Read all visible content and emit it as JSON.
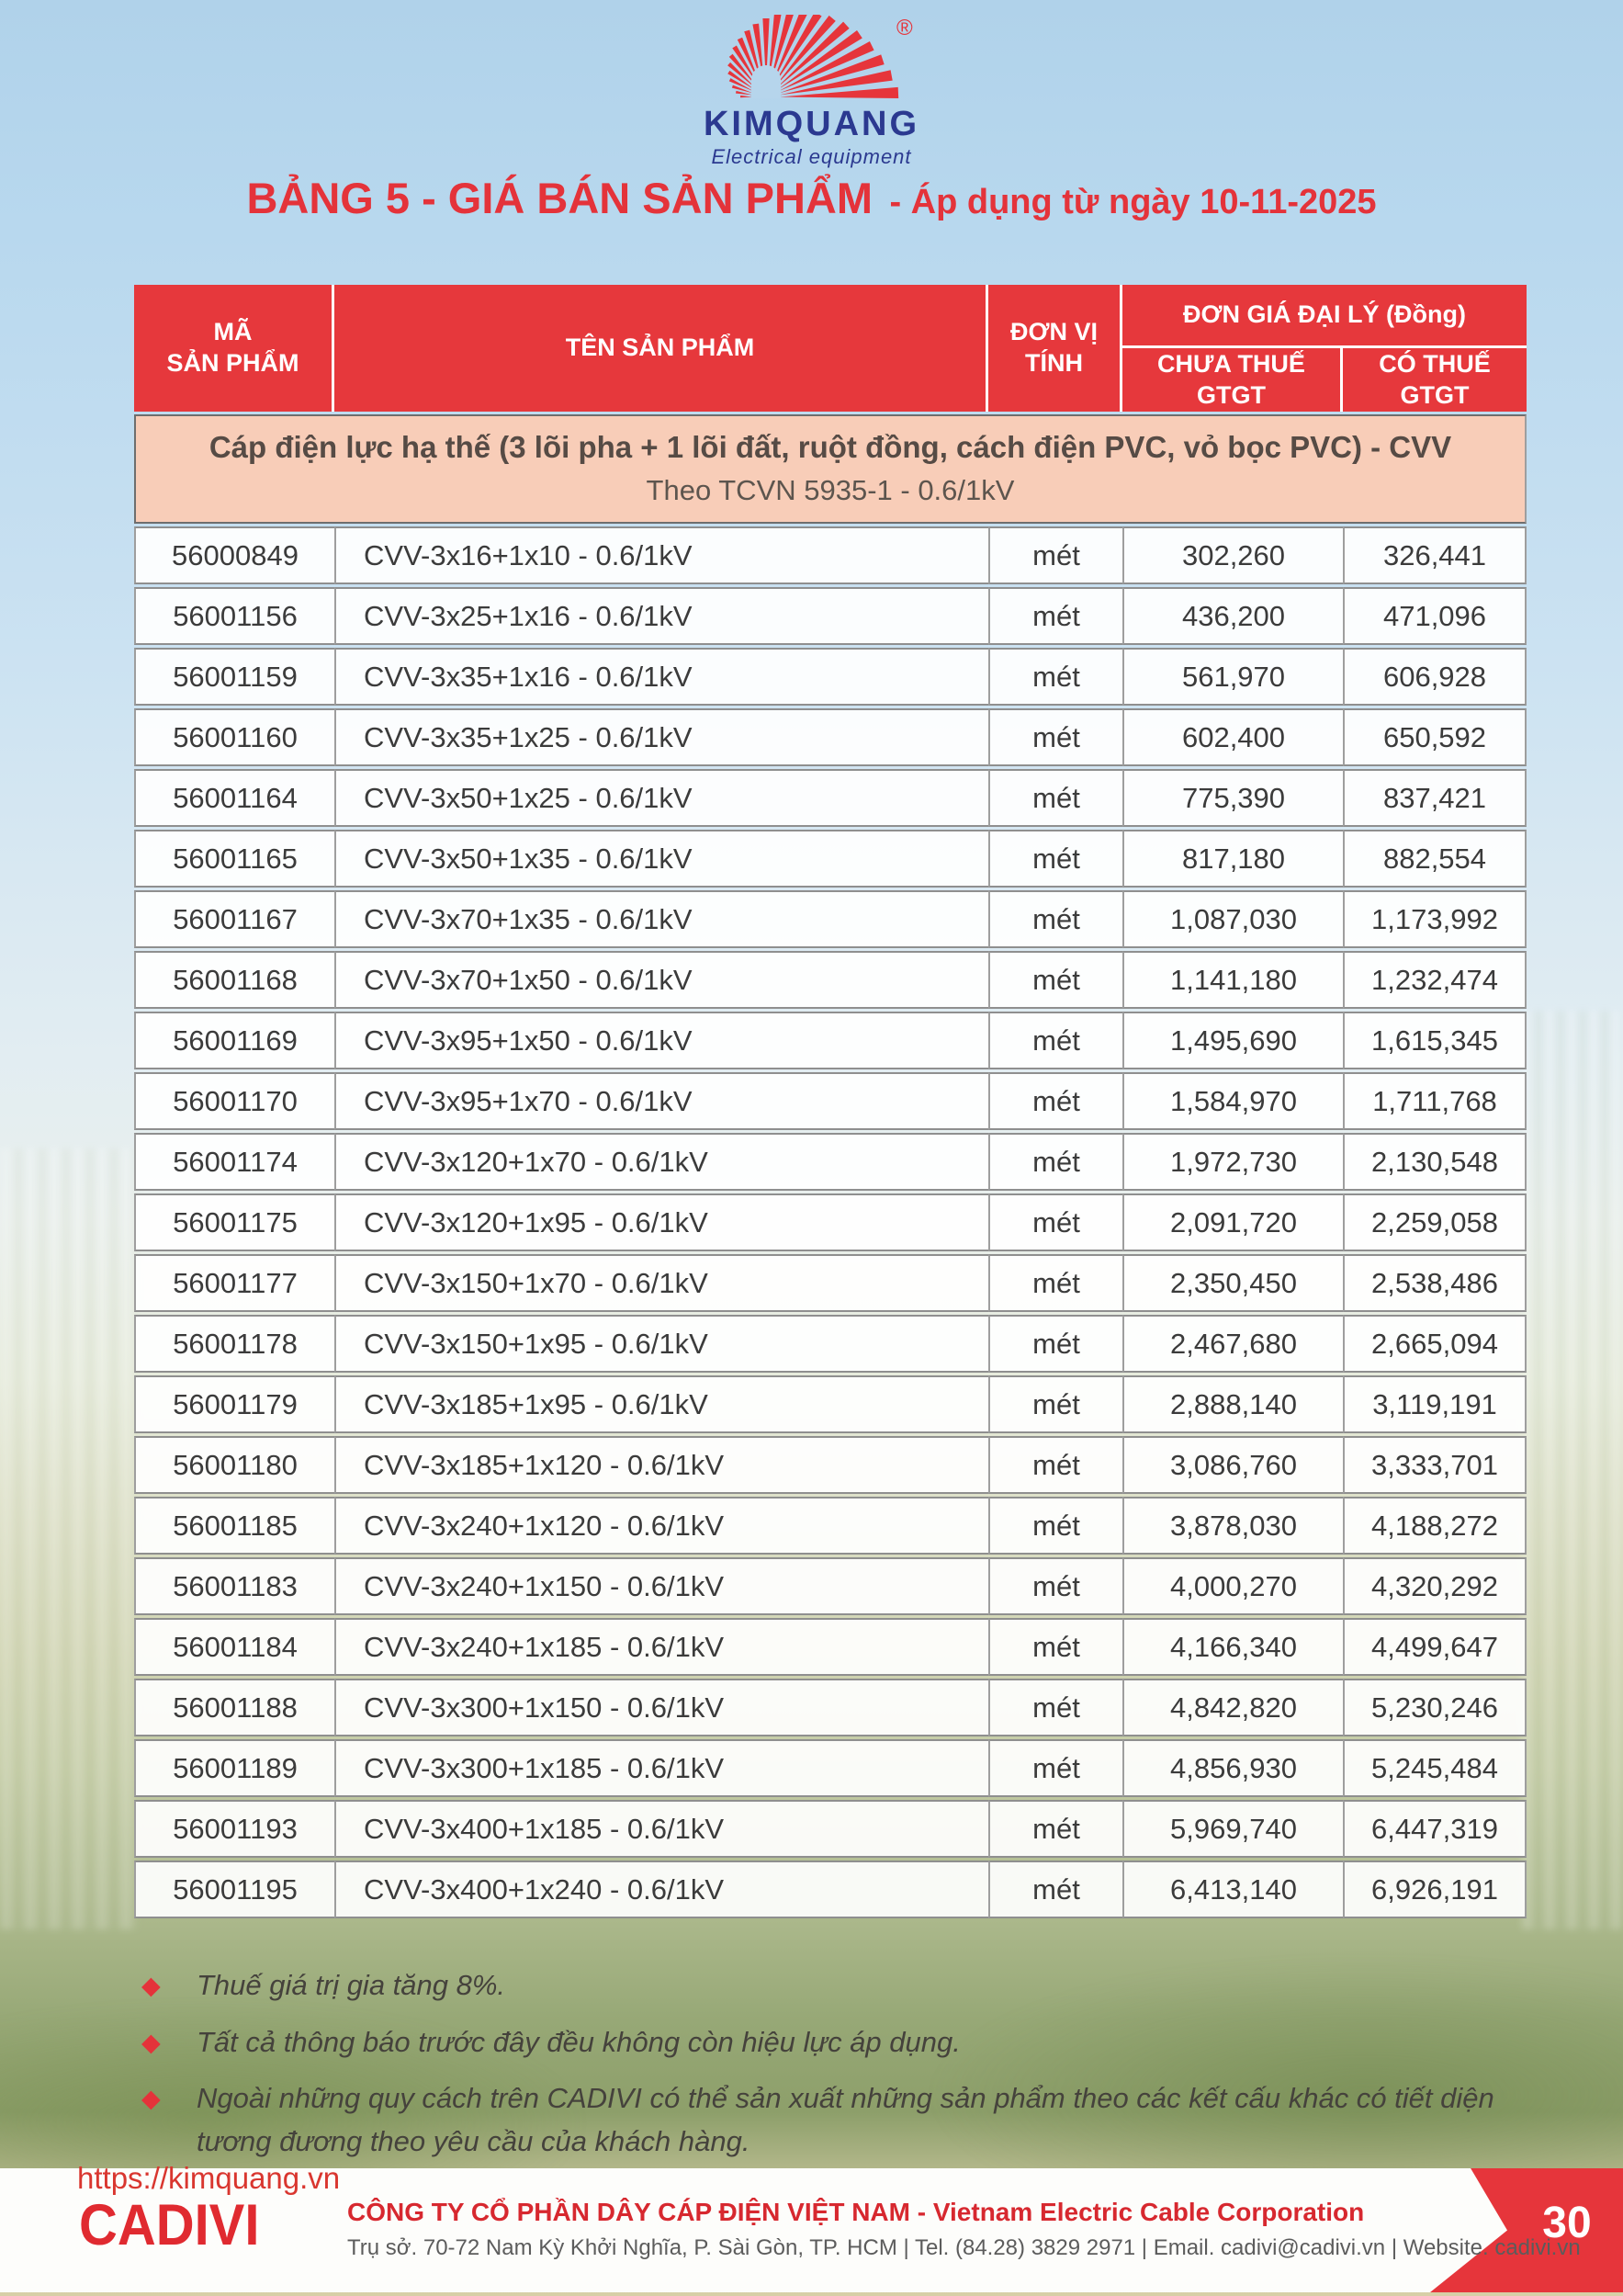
{
  "logo": {
    "brand": "KIMQUANG",
    "tagline": "Electrical equipment",
    "registered_mark": "®",
    "ray_color": "#e6353b",
    "text_color": "#2b3990"
  },
  "title": {
    "main": "BẢNG 5 - GIÁ BÁN SẢN PHẨM",
    "suffix": "- Áp dụng từ ngày 10-11-2025"
  },
  "table": {
    "headers": {
      "code": "MÃ\nSẢN PHẨM",
      "name": "TÊN SẢN PHẨM",
      "unit": "ĐƠN VỊ\nTÍNH",
      "price_group": "ĐƠN GIÁ ĐẠI LÝ (Đồng)",
      "price_ex_vat": "CHƯA THUẾ\nGTGT",
      "price_inc_vat": "CÓ THUẾ\nGTGT"
    },
    "category": {
      "line1": "Cáp điện lực hạ thế (3 lõi pha + 1 lõi đất, ruột đồng, cách điện PVC,  vỏ bọc PVC) - CVV",
      "line2": "Theo TCVN 5935-1 - 0.6/1kV"
    },
    "rows": [
      {
        "code": "56000849",
        "name": "CVV-3x16+1x10 - 0.6/1kV",
        "unit": "mét",
        "price_ex": "302,260",
        "price_inc": "326,441"
      },
      {
        "code": "56001156",
        "name": "CVV-3x25+1x16 - 0.6/1kV",
        "unit": "mét",
        "price_ex": "436,200",
        "price_inc": "471,096"
      },
      {
        "code": "56001159",
        "name": "CVV-3x35+1x16 - 0.6/1kV",
        "unit": "mét",
        "price_ex": "561,970",
        "price_inc": "606,928"
      },
      {
        "code": "56001160",
        "name": "CVV-3x35+1x25 - 0.6/1kV",
        "unit": "mét",
        "price_ex": "602,400",
        "price_inc": "650,592"
      },
      {
        "code": "56001164",
        "name": "CVV-3x50+1x25 - 0.6/1kV",
        "unit": "mét",
        "price_ex": "775,390",
        "price_inc": "837,421"
      },
      {
        "code": "56001165",
        "name": "CVV-3x50+1x35 - 0.6/1kV",
        "unit": "mét",
        "price_ex": "817,180",
        "price_inc": "882,554"
      },
      {
        "code": "56001167",
        "name": "CVV-3x70+1x35 - 0.6/1kV",
        "unit": "mét",
        "price_ex": "1,087,030",
        "price_inc": "1,173,992"
      },
      {
        "code": "56001168",
        "name": "CVV-3x70+1x50 - 0.6/1kV",
        "unit": "mét",
        "price_ex": "1,141,180",
        "price_inc": "1,232,474"
      },
      {
        "code": "56001169",
        "name": "CVV-3x95+1x50 - 0.6/1kV",
        "unit": "mét",
        "price_ex": "1,495,690",
        "price_inc": "1,615,345"
      },
      {
        "code": "56001170",
        "name": "CVV-3x95+1x70 - 0.6/1kV",
        "unit": "mét",
        "price_ex": "1,584,970",
        "price_inc": "1,711,768"
      },
      {
        "code": "56001174",
        "name": "CVV-3x120+1x70 - 0.6/1kV",
        "unit": "mét",
        "price_ex": "1,972,730",
        "price_inc": "2,130,548"
      },
      {
        "code": "56001175",
        "name": "CVV-3x120+1x95 - 0.6/1kV",
        "unit": "mét",
        "price_ex": "2,091,720",
        "price_inc": "2,259,058"
      },
      {
        "code": "56001177",
        "name": "CVV-3x150+1x70 - 0.6/1kV",
        "unit": "mét",
        "price_ex": "2,350,450",
        "price_inc": "2,538,486"
      },
      {
        "code": "56001178",
        "name": "CVV-3x150+1x95 - 0.6/1kV",
        "unit": "mét",
        "price_ex": "2,467,680",
        "price_inc": "2,665,094"
      },
      {
        "code": "56001179",
        "name": "CVV-3x185+1x95 - 0.6/1kV",
        "unit": "mét",
        "price_ex": "2,888,140",
        "price_inc": "3,119,191"
      },
      {
        "code": "56001180",
        "name": "CVV-3x185+1x120 - 0.6/1kV",
        "unit": "mét",
        "price_ex": "3,086,760",
        "price_inc": "3,333,701"
      },
      {
        "code": "56001185",
        "name": "CVV-3x240+1x120 - 0.6/1kV",
        "unit": "mét",
        "price_ex": "3,878,030",
        "price_inc": "4,188,272"
      },
      {
        "code": "56001183",
        "name": "CVV-3x240+1x150 - 0.6/1kV",
        "unit": "mét",
        "price_ex": "4,000,270",
        "price_inc": "4,320,292"
      },
      {
        "code": "56001184",
        "name": "CVV-3x240+1x185 - 0.6/1kV",
        "unit": "mét",
        "price_ex": "4,166,340",
        "price_inc": "4,499,647"
      },
      {
        "code": "56001188",
        "name": "CVV-3x300+1x150 - 0.6/1kV",
        "unit": "mét",
        "price_ex": "4,842,820",
        "price_inc": "5,230,246"
      },
      {
        "code": "56001189",
        "name": "CVV-3x300+1x185 - 0.6/1kV",
        "unit": "mét",
        "price_ex": "4,856,930",
        "price_inc": "5,245,484"
      },
      {
        "code": "56001193",
        "name": "CVV-3x400+1x185 - 0.6/1kV",
        "unit": "mét",
        "price_ex": "5,969,740",
        "price_inc": "6,447,319"
      },
      {
        "code": "56001195",
        "name": "CVV-3x400+1x240 - 0.6/1kV",
        "unit": "mét",
        "price_ex": "6,413,140",
        "price_inc": "6,926,191"
      }
    ]
  },
  "notes": [
    "Thuế giá trị gia tăng 8%.",
    "Tất cả thông báo trước đây đều không còn hiệu lực áp dụng.",
    "Ngoài những quy cách trên CADIVI có thể sản xuất những sản phẩm theo các kết cấu khác có tiết diện tương đương theo yêu cầu của khách hàng."
  ],
  "footer": {
    "url": "https://kimquang.vn",
    "brand": "CADIVI",
    "company": "CÔNG TY CỔ PHẦN DÂY CÁP ĐIỆN VIỆT NAM - Vietnam Electric Cable Corporation",
    "address": "Trụ sở. 70-72 Nam Kỳ Khởi Nghĩa, P. Sài Gòn, TP. HCM | Tel. (84.28) 3829 2971 | Email. cadivi@cadivi.vn | Website. cadivi.vn",
    "page_number": "30"
  },
  "colors": {
    "header_red": "#e6383c",
    "title_red": "#e4333a",
    "category_pink": "#f8cdb8",
    "logo_blue": "#2b3990",
    "ribbon_red": "#e6353b"
  }
}
